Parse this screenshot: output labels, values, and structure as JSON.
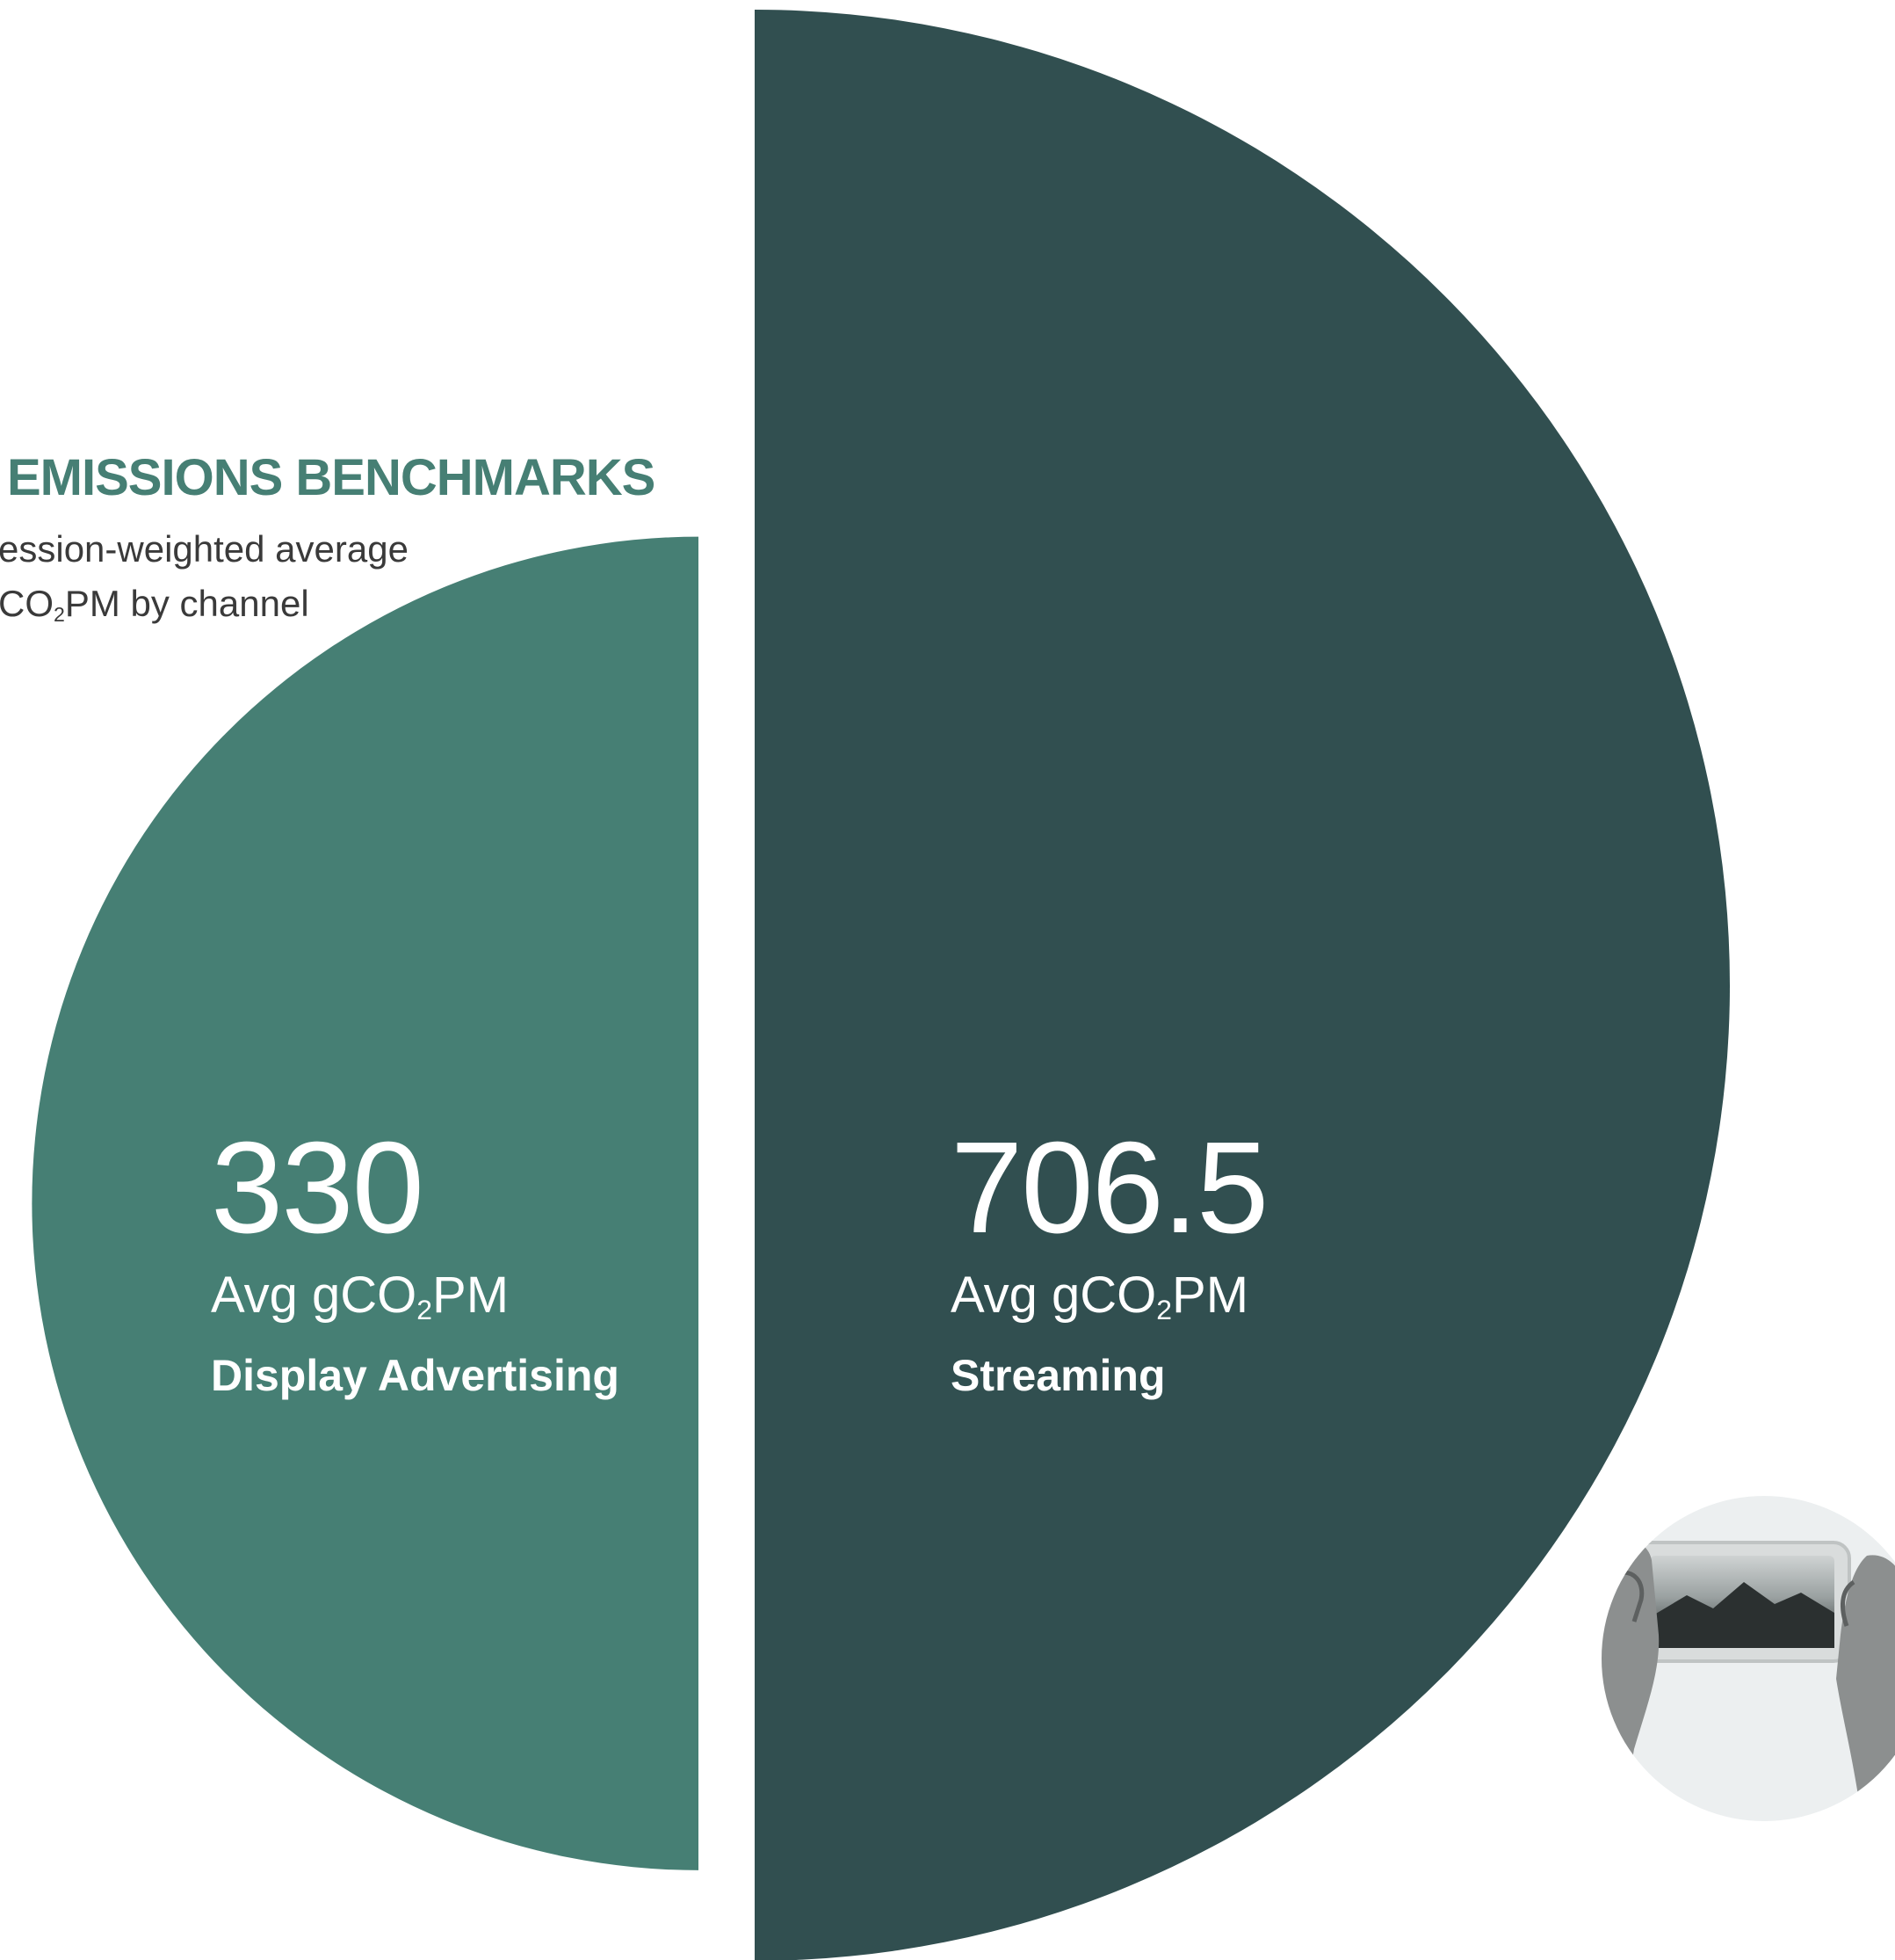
{
  "chart_data": {
    "type": "pie",
    "title": "EMISSIONS BENCHMARKS",
    "subtitle_line1": "ession-weighted average",
    "subtitle_line2_pre": "CO",
    "subtitle_line2_sub": "2",
    "subtitle_line2_post": "PM by channel",
    "categories": [
      "Display Advertising",
      "Streaming"
    ],
    "values": [
      330,
      706.5
    ],
    "value_labels": [
      "330",
      "706.5"
    ],
    "unit_pre": "Avg gCO",
    "unit_sub": "2",
    "unit_post": "PM",
    "colors": {
      "display": "#467f74",
      "streaming": "#314f50",
      "title": "#467f74",
      "photo_circle": "#eceff0"
    },
    "icon": "hands-holding-phone-photo"
  }
}
